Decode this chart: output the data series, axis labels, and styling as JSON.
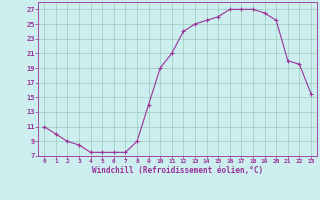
{
  "x": [
    0,
    1,
    2,
    3,
    4,
    5,
    6,
    7,
    8,
    9,
    10,
    11,
    12,
    13,
    14,
    15,
    16,
    17,
    18,
    19,
    20,
    21,
    22,
    23
  ],
  "y": [
    11,
    10,
    9,
    8.5,
    7.5,
    7.5,
    7.5,
    7.5,
    9,
    14,
    19,
    21,
    24,
    25,
    25.5,
    26,
    27,
    27,
    27,
    26.5,
    25.5,
    20,
    19.5,
    15.5
  ],
  "line_color": "#993399",
  "marker": "+",
  "bg_color": "#cceeee",
  "grid_color": "#99ccbb",
  "xlabel": "Windchill (Refroidissement éolien,°C)",
  "xlabel_color": "#993399",
  "tick_color": "#993399",
  "ylim": [
    7,
    28
  ],
  "xlim": [
    -0.5,
    23.5
  ],
  "yticks": [
    7,
    9,
    11,
    13,
    15,
    17,
    19,
    21,
    23,
    25,
    27
  ],
  "xticks": [
    0,
    1,
    2,
    3,
    4,
    5,
    6,
    7,
    8,
    9,
    10,
    11,
    12,
    13,
    14,
    15,
    16,
    17,
    18,
    19,
    20,
    21,
    22,
    23
  ]
}
